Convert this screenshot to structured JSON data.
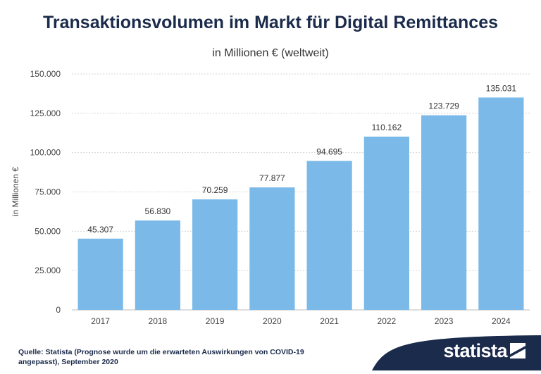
{
  "chart_data": {
    "type": "bar",
    "title": "Transaktionsvolumen im Markt für Digital Remittances",
    "subtitle": "in Millionen € (weltweit)",
    "ylabel": "in Millionen €",
    "xlabel": "",
    "categories": [
      "2017",
      "2018",
      "2019",
      "2020",
      "2021",
      "2022",
      "2023",
      "2024"
    ],
    "values": [
      45307,
      56830,
      70259,
      77877,
      94695,
      110162,
      123729,
      135031
    ],
    "value_labels": [
      "45.307",
      "56.830",
      "70.259",
      "77.877",
      "94.695",
      "110.162",
      "123.729",
      "135.031"
    ],
    "ylim": [
      0,
      150000
    ],
    "yticks": [
      0,
      25000,
      50000,
      75000,
      100000,
      125000,
      150000
    ],
    "ytick_labels": [
      "0",
      "25.000",
      "50.000",
      "75.000",
      "100.000",
      "125.000",
      "150.000"
    ],
    "grid": true,
    "bar_color": "#7ab9e8"
  },
  "footer": {
    "source": "Quelle: Statista (Prognose wurde um die erwarteten Auswirkungen von COVID-19 angepasst), September 2020",
    "logo": "statista",
    "logo_color": "#1b2b4b"
  }
}
